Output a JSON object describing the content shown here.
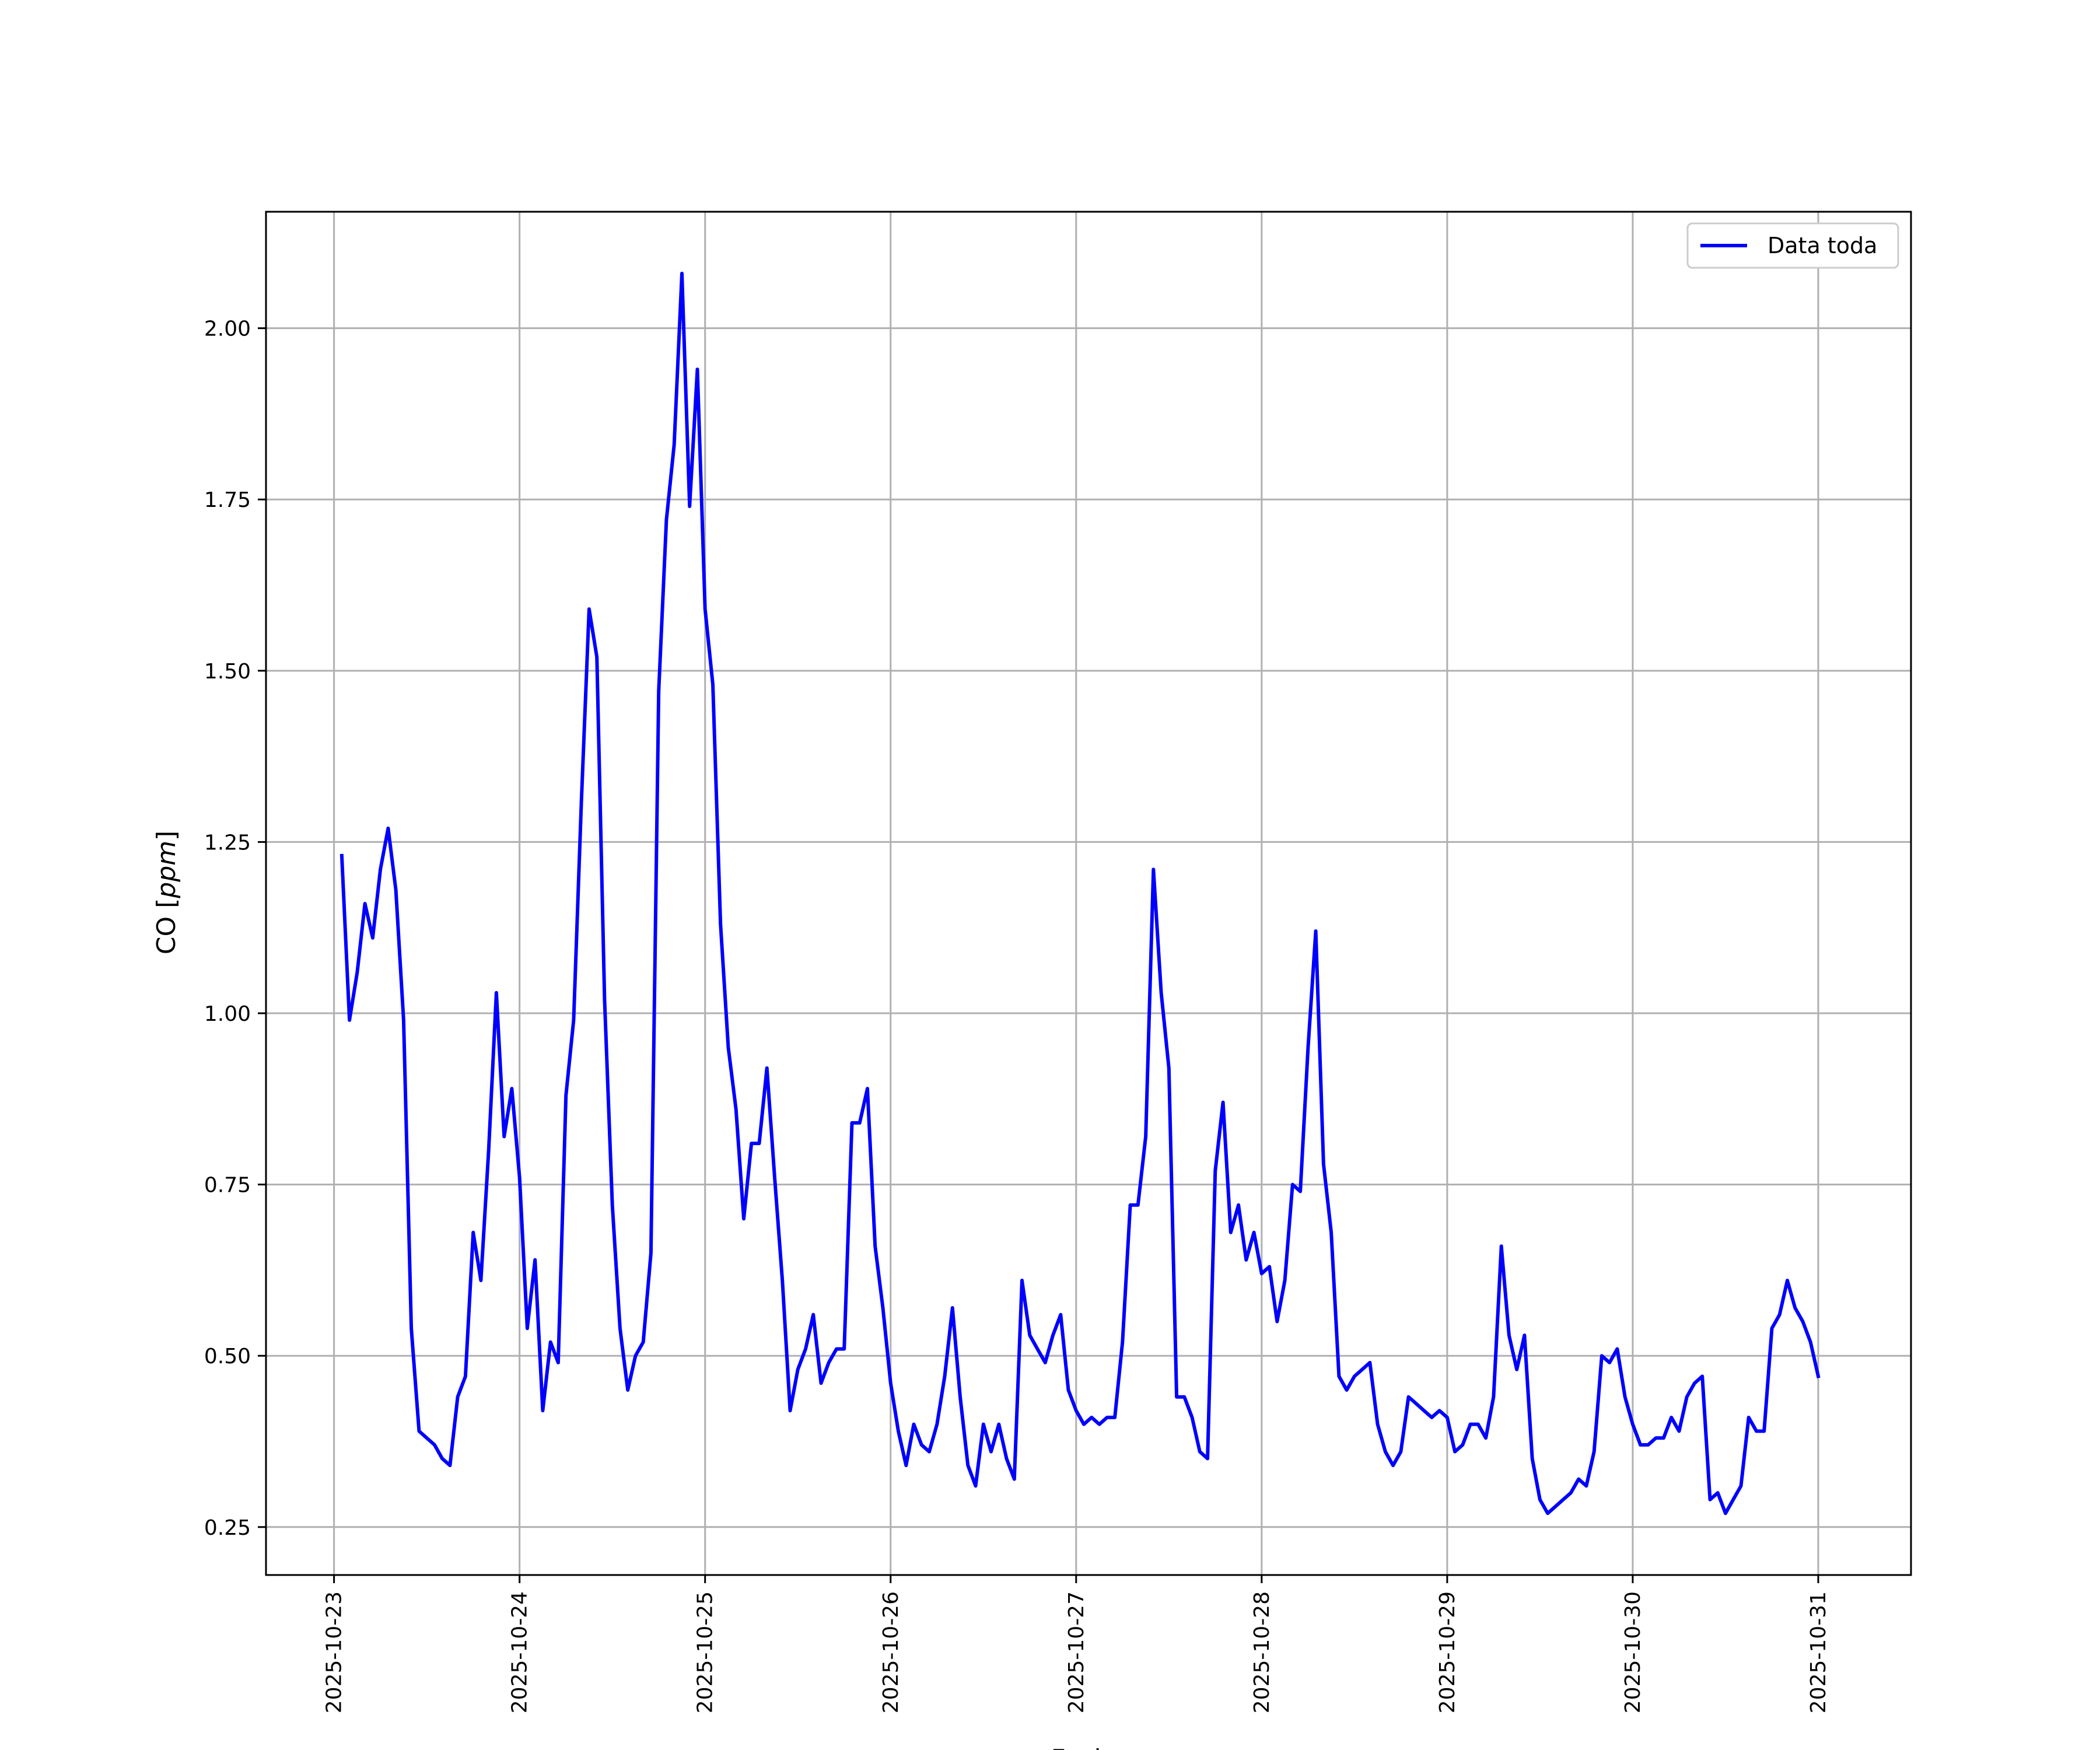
{
  "chart_data": {
    "type": "line",
    "xlabel": "Fecha",
    "ylabel_prefix": "CO [",
    "ylabel_unit": "ppm",
    "ylabel_suffix": "]",
    "ylim": [
      0.18,
      2.17
    ],
    "xlim": [
      "2025-10-22 15:12",
      "2025-10-31 12:00"
    ],
    "grid": true,
    "legend_position": "top-right",
    "x_ticks": [
      "2025-10-23",
      "2025-10-24",
      "2025-10-25",
      "2025-10-26",
      "2025-10-27",
      "2025-10-28",
      "2025-10-29",
      "2025-10-30",
      "2025-10-31"
    ],
    "y_ticks": [
      "0.25",
      "0.50",
      "0.75",
      "1.00",
      "1.25",
      "1.50",
      "1.75",
      "2.00"
    ],
    "y_tick_values": [
      0.25,
      0.5,
      0.75,
      1.0,
      1.25,
      1.5,
      1.75,
      2.0
    ],
    "series": [
      {
        "name": "Data toda",
        "color": "#0000ff",
        "x_start": "2025-10-23 01:00",
        "step_hours": 1,
        "values": [
          1.23,
          0.99,
          1.06,
          1.16,
          1.11,
          1.21,
          1.27,
          1.18,
          0.99,
          0.54,
          0.39,
          0.38,
          0.37,
          0.35,
          0.34,
          0.44,
          0.47,
          0.68,
          0.61,
          0.8,
          1.03,
          0.82,
          0.89,
          0.76,
          0.54,
          0.64,
          0.42,
          0.52,
          0.49,
          0.88,
          0.99,
          1.31,
          1.59,
          1.52,
          1.02,
          0.72,
          0.54,
          0.45,
          0.5,
          0.52,
          0.65,
          1.47,
          1.72,
          1.83,
          2.08,
          1.74,
          1.94,
          1.59,
          1.48,
          1.13,
          0.95,
          0.86,
          0.7,
          0.81,
          0.81,
          0.92,
          0.76,
          0.61,
          0.42,
          0.48,
          0.51,
          0.56,
          0.46,
          0.49,
          0.51,
          0.51,
          0.84,
          0.84,
          0.89,
          0.66,
          0.57,
          0.46,
          0.39,
          0.34,
          0.4,
          0.37,
          0.36,
          0.4,
          0.47,
          0.57,
          0.44,
          0.34,
          0.31,
          0.4,
          0.36,
          0.4,
          0.35,
          0.32,
          0.61,
          0.53,
          0.51,
          0.49,
          0.53,
          0.56,
          0.45,
          0.42,
          0.4,
          0.41,
          0.4,
          0.41,
          0.41,
          0.52,
          0.72,
          0.72,
          0.82,
          1.21,
          1.03,
          0.92,
          0.44,
          0.44,
          0.41,
          0.36,
          0.35,
          0.77,
          0.87,
          0.68,
          0.72,
          0.64,
          0.68,
          0.62,
          0.63,
          0.55,
          0.61,
          0.75,
          0.74,
          0.95,
          1.12,
          0.78,
          0.68,
          0.47,
          0.45,
          0.47,
          0.48,
          0.49,
          0.4,
          0.36,
          0.34,
          0.36,
          0.44,
          0.43,
          0.42,
          0.41,
          0.42,
          0.41,
          0.36,
          0.37,
          0.4,
          0.4,
          0.38,
          0.44,
          0.66,
          0.53,
          0.48,
          0.53,
          0.35,
          0.29,
          0.27,
          0.28,
          0.29,
          0.3,
          0.32,
          0.31,
          0.36,
          0.5,
          0.49,
          0.51,
          0.44,
          0.4,
          0.37,
          0.37,
          0.38,
          0.38,
          0.41,
          0.39,
          0.44,
          0.46,
          0.47,
          0.29,
          0.3,
          0.27,
          0.29,
          0.31,
          0.41,
          0.39,
          0.39,
          0.54,
          0.56,
          0.61,
          0.57,
          0.55,
          0.52,
          0.47
        ]
      }
    ]
  }
}
